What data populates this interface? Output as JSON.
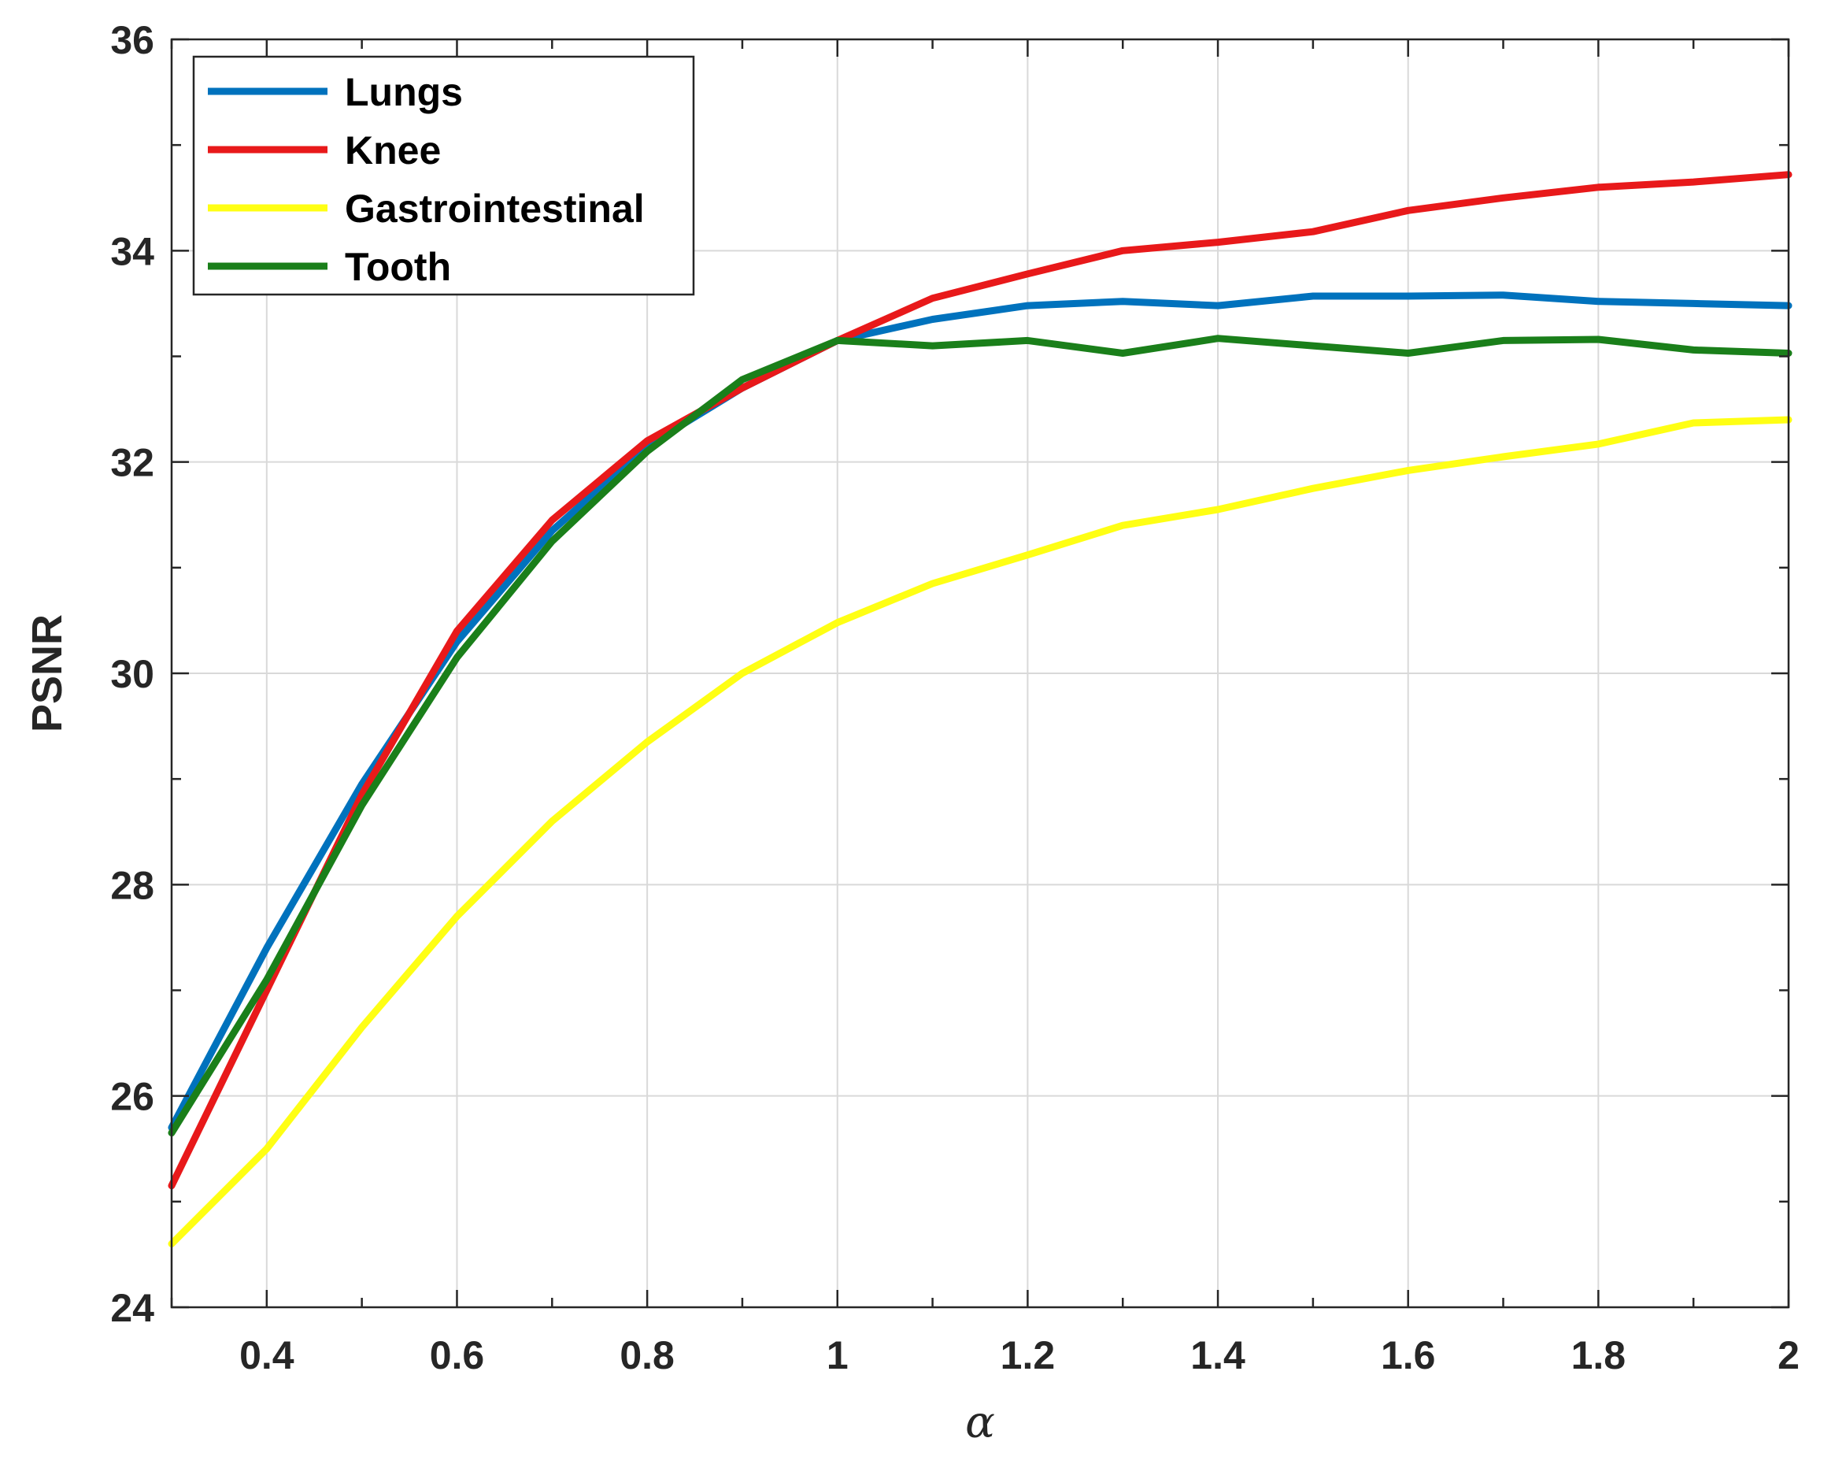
{
  "chart_data": {
    "type": "line",
    "title": "",
    "xlabel": "α",
    "ylabel": "PSNR",
    "xlim": [
      0.3,
      2.0
    ],
    "ylim": [
      24,
      36
    ],
    "grid": true,
    "legend_position": "top-left",
    "x": [
      0.3,
      0.4,
      0.5,
      0.6,
      0.7,
      0.8,
      0.9,
      1.0,
      1.1,
      1.2,
      1.3,
      1.4,
      1.5,
      1.6,
      1.7,
      1.8,
      1.9,
      2.0
    ],
    "xticks": [
      0.4,
      0.6,
      0.8,
      1,
      1.2,
      1.4,
      1.6,
      1.8,
      2
    ],
    "xtick_labels": [
      "0.4",
      "0.6",
      "0.8",
      "1",
      "1.2",
      "1.4",
      "1.6",
      "1.8",
      "2"
    ],
    "xminor_ticks": [
      0.3,
      0.5,
      0.7,
      0.9,
      1.1,
      1.3,
      1.5,
      1.7,
      1.9
    ],
    "yticks": [
      24,
      26,
      28,
      30,
      32,
      34,
      36
    ],
    "ytick_labels": [
      "24",
      "26",
      "28",
      "30",
      "32",
      "34",
      "36"
    ],
    "yminor_ticks": [
      25,
      27,
      29,
      31,
      33,
      35
    ],
    "series": [
      {
        "name": "Lungs",
        "color": "#0072BD",
        "values": [
          25.7,
          27.4,
          28.95,
          30.3,
          31.35,
          32.15,
          32.7,
          33.15,
          33.35,
          33.48,
          33.52,
          33.48,
          33.57,
          33.57,
          33.58,
          33.52,
          33.5,
          33.48
        ]
      },
      {
        "name": "Knee",
        "color": "#E8191A",
        "values": [
          25.15,
          27.0,
          28.85,
          30.4,
          31.45,
          32.2,
          32.7,
          33.15,
          33.55,
          33.78,
          34.0,
          34.08,
          34.18,
          34.38,
          34.5,
          34.6,
          34.65,
          34.72
        ]
      },
      {
        "name": "Gastrointestinal",
        "color": "#FFFF14",
        "values": [
          24.6,
          25.5,
          26.65,
          27.7,
          28.6,
          29.35,
          30.0,
          30.48,
          30.85,
          31.12,
          31.4,
          31.55,
          31.75,
          31.92,
          32.05,
          32.17,
          32.37,
          32.4
        ]
      },
      {
        "name": "Tooth",
        "color": "#1A7F1A",
        "values": [
          25.65,
          27.1,
          28.75,
          30.15,
          31.25,
          32.1,
          32.78,
          33.15,
          33.1,
          33.15,
          33.03,
          33.17,
          33.1,
          33.03,
          33.15,
          33.16,
          33.06,
          33.03
        ]
      }
    ]
  }
}
